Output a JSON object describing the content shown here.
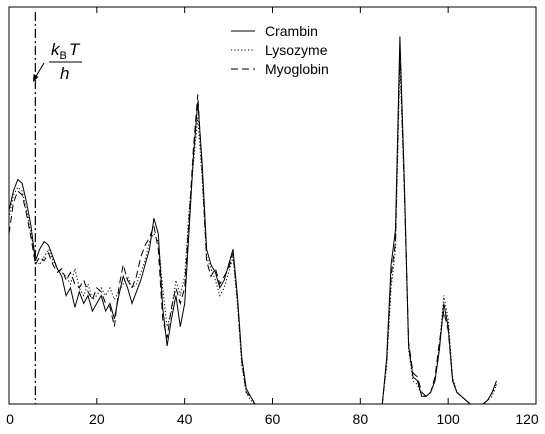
{
  "chart_data": {
    "type": "line",
    "title": "",
    "xlabel": "",
    "ylabel": "",
    "xlim": [
      0,
      120
    ],
    "ylim": [
      0,
      1
    ],
    "x_ticks": [
      0,
      20,
      40,
      60,
      80,
      100,
      120
    ],
    "x_tick_labels": [
      "0",
      "20",
      "40",
      "60",
      "80",
      "100",
      "120"
    ],
    "grid": false,
    "legend_position": "top-center",
    "annotation": {
      "text_k": "k",
      "text_sub": "B",
      "text_T": "T",
      "text_denominator": "h",
      "x": 6
    },
    "series": [
      {
        "name": "Crambin",
        "style": "solid",
        "points": [
          [
            0,
            0.5
          ],
          [
            1,
            0.55
          ],
          [
            2,
            0.58
          ],
          [
            3,
            0.57
          ],
          [
            4,
            0.52
          ],
          [
            5,
            0.46
          ],
          [
            6,
            0.37
          ],
          [
            7,
            0.4
          ],
          [
            8,
            0.42
          ],
          [
            9,
            0.41
          ],
          [
            10,
            0.38
          ],
          [
            11,
            0.35
          ],
          [
            12,
            0.33
          ],
          [
            13,
            0.28
          ],
          [
            14,
            0.3
          ],
          [
            15,
            0.25
          ],
          [
            16,
            0.29
          ],
          [
            17,
            0.26
          ],
          [
            18,
            0.28
          ],
          [
            19,
            0.24
          ],
          [
            20,
            0.26
          ],
          [
            21,
            0.28
          ],
          [
            22,
            0.24
          ],
          [
            23,
            0.26
          ],
          [
            24,
            0.22
          ],
          [
            25,
            0.28
          ],
          [
            26,
            0.33
          ],
          [
            27,
            0.3
          ],
          [
            28,
            0.26
          ],
          [
            29,
            0.29
          ],
          [
            30,
            0.32
          ],
          [
            31,
            0.36
          ],
          [
            32,
            0.4
          ],
          [
            33,
            0.48
          ],
          [
            34,
            0.44
          ],
          [
            35,
            0.25
          ],
          [
            36,
            0.15
          ],
          [
            37,
            0.22
          ],
          [
            38,
            0.28
          ],
          [
            39,
            0.2
          ],
          [
            40,
            0.26
          ],
          [
            41,
            0.45
          ],
          [
            42,
            0.64
          ],
          [
            43,
            0.78
          ],
          [
            44,
            0.62
          ],
          [
            45,
            0.4
          ],
          [
            46,
            0.36
          ],
          [
            47,
            0.34
          ],
          [
            48,
            0.3
          ],
          [
            49,
            0.32
          ],
          [
            50,
            0.36
          ],
          [
            51,
            0.4
          ],
          [
            52,
            0.28
          ],
          [
            53,
            0.12
          ],
          [
            54,
            0.04
          ],
          [
            55,
            0.02
          ],
          [
            56,
            0.0
          ],
          [
            60,
            0.0
          ],
          [
            70,
            0.0
          ],
          [
            80,
            0.0
          ],
          [
            85,
            0.0
          ],
          [
            86,
            0.12
          ],
          [
            87,
            0.36
          ],
          [
            88,
            0.45
          ],
          [
            89,
            0.95
          ],
          [
            90,
            0.58
          ],
          [
            91,
            0.15
          ],
          [
            92,
            0.07
          ],
          [
            93,
            0.06
          ],
          [
            94,
            0.02
          ],
          [
            95,
            0.02
          ],
          [
            96,
            0.03
          ],
          [
            97,
            0.06
          ],
          [
            98,
            0.14
          ],
          [
            99,
            0.26
          ],
          [
            100,
            0.2
          ],
          [
            101,
            0.06
          ],
          [
            102,
            0.03
          ],
          [
            103,
            0.02
          ],
          [
            104,
            0.01
          ],
          [
            105,
            0.0
          ],
          [
            108,
            0.0
          ],
          [
            109,
            0.01
          ],
          [
            110,
            0.03
          ],
          [
            111,
            0.06
          ]
        ]
      },
      {
        "name": "Lysozyme",
        "style": "dotted",
        "points": [
          [
            0,
            0.48
          ],
          [
            1,
            0.54
          ],
          [
            2,
            0.56
          ],
          [
            3,
            0.55
          ],
          [
            4,
            0.5
          ],
          [
            5,
            0.44
          ],
          [
            6,
            0.38
          ],
          [
            7,
            0.36
          ],
          [
            8,
            0.38
          ],
          [
            9,
            0.4
          ],
          [
            10,
            0.37
          ],
          [
            11,
            0.35
          ],
          [
            12,
            0.34
          ],
          [
            13,
            0.33
          ],
          [
            14,
            0.31
          ],
          [
            15,
            0.35
          ],
          [
            16,
            0.3
          ],
          [
            17,
            0.28
          ],
          [
            18,
            0.31
          ],
          [
            19,
            0.27
          ],
          [
            20,
            0.28
          ],
          [
            21,
            0.3
          ],
          [
            22,
            0.28
          ],
          [
            23,
            0.3
          ],
          [
            24,
            0.27
          ],
          [
            25,
            0.29
          ],
          [
            26,
            0.31
          ],
          [
            27,
            0.33
          ],
          [
            28,
            0.3
          ],
          [
            29,
            0.31
          ],
          [
            30,
            0.34
          ],
          [
            31,
            0.37
          ],
          [
            32,
            0.42
          ],
          [
            33,
            0.44
          ],
          [
            34,
            0.42
          ],
          [
            35,
            0.3
          ],
          [
            36,
            0.2
          ],
          [
            37,
            0.24
          ],
          [
            38,
            0.32
          ],
          [
            39,
            0.28
          ],
          [
            40,
            0.33
          ],
          [
            41,
            0.5
          ],
          [
            42,
            0.62
          ],
          [
            43,
            0.74
          ],
          [
            44,
            0.58
          ],
          [
            45,
            0.38
          ],
          [
            46,
            0.35
          ],
          [
            47,
            0.32
          ],
          [
            48,
            0.28
          ],
          [
            49,
            0.3
          ],
          [
            50,
            0.34
          ],
          [
            51,
            0.38
          ],
          [
            52,
            0.26
          ],
          [
            53,
            0.1
          ],
          [
            54,
            0.03
          ],
          [
            55,
            0.01
          ],
          [
            56,
            0.0
          ],
          [
            60,
            0.0
          ],
          [
            70,
            0.0
          ],
          [
            80,
            0.0
          ],
          [
            85,
            0.0
          ],
          [
            86,
            0.1
          ],
          [
            87,
            0.3
          ],
          [
            88,
            0.4
          ],
          [
            89,
            0.88
          ],
          [
            90,
            0.55
          ],
          [
            91,
            0.14
          ],
          [
            92,
            0.06
          ],
          [
            93,
            0.05
          ],
          [
            94,
            0.02
          ],
          [
            95,
            0.02
          ],
          [
            96,
            0.03
          ],
          [
            97,
            0.06
          ],
          [
            98,
            0.15
          ],
          [
            99,
            0.28
          ],
          [
            100,
            0.22
          ],
          [
            101,
            0.07
          ],
          [
            102,
            0.03
          ],
          [
            103,
            0.02
          ],
          [
            104,
            0.01
          ],
          [
            105,
            0.0
          ],
          [
            108,
            0.0
          ],
          [
            109,
            0.01
          ],
          [
            110,
            0.02
          ],
          [
            111,
            0.05
          ]
        ]
      },
      {
        "name": "Myoglobin",
        "style": "dashed",
        "points": [
          [
            0,
            0.44
          ],
          [
            1,
            0.52
          ],
          [
            2,
            0.55
          ],
          [
            3,
            0.54
          ],
          [
            4,
            0.49
          ],
          [
            5,
            0.43
          ],
          [
            6,
            0.36
          ],
          [
            7,
            0.38
          ],
          [
            8,
            0.37
          ],
          [
            9,
            0.39
          ],
          [
            10,
            0.36
          ],
          [
            11,
            0.34
          ],
          [
            12,
            0.35
          ],
          [
            13,
            0.32
          ],
          [
            14,
            0.34
          ],
          [
            15,
            0.31
          ],
          [
            16,
            0.3
          ],
          [
            17,
            0.32
          ],
          [
            18,
            0.29
          ],
          [
            19,
            0.27
          ],
          [
            20,
            0.3
          ],
          [
            21,
            0.29
          ],
          [
            22,
            0.26
          ],
          [
            23,
            0.25
          ],
          [
            24,
            0.2
          ],
          [
            25,
            0.3
          ],
          [
            26,
            0.36
          ],
          [
            27,
            0.32
          ],
          [
            28,
            0.3
          ],
          [
            29,
            0.33
          ],
          [
            30,
            0.38
          ],
          [
            31,
            0.41
          ],
          [
            32,
            0.43
          ],
          [
            33,
            0.46
          ],
          [
            34,
            0.4
          ],
          [
            35,
            0.22
          ],
          [
            36,
            0.17
          ],
          [
            37,
            0.25
          ],
          [
            38,
            0.3
          ],
          [
            39,
            0.26
          ],
          [
            40,
            0.3
          ],
          [
            41,
            0.48
          ],
          [
            42,
            0.66
          ],
          [
            43,
            0.8
          ],
          [
            44,
            0.6
          ],
          [
            45,
            0.37
          ],
          [
            46,
            0.33
          ],
          [
            47,
            0.35
          ],
          [
            48,
            0.31
          ],
          [
            49,
            0.33
          ],
          [
            50,
            0.35
          ],
          [
            51,
            0.39
          ],
          [
            52,
            0.27
          ],
          [
            53,
            0.11
          ],
          [
            54,
            0.03
          ],
          [
            55,
            0.02
          ],
          [
            56,
            0.0
          ],
          [
            60,
            0.0
          ],
          [
            70,
            0.0
          ],
          [
            80,
            0.0
          ],
          [
            85,
            0.0
          ],
          [
            86,
            0.11
          ],
          [
            87,
            0.33
          ],
          [
            88,
            0.42
          ],
          [
            89,
            0.92
          ],
          [
            90,
            0.56
          ],
          [
            91,
            0.16
          ],
          [
            92,
            0.08
          ],
          [
            93,
            0.07
          ],
          [
            94,
            0.03
          ],
          [
            95,
            0.02
          ],
          [
            96,
            0.03
          ],
          [
            97,
            0.07
          ],
          [
            98,
            0.16
          ],
          [
            99,
            0.24
          ],
          [
            100,
            0.19
          ],
          [
            101,
            0.06
          ],
          [
            102,
            0.03
          ],
          [
            103,
            0.02
          ],
          [
            104,
            0.01
          ],
          [
            105,
            0.0
          ],
          [
            108,
            0.0
          ],
          [
            109,
            0.01
          ],
          [
            110,
            0.03
          ],
          [
            111,
            0.05
          ]
        ]
      }
    ]
  }
}
